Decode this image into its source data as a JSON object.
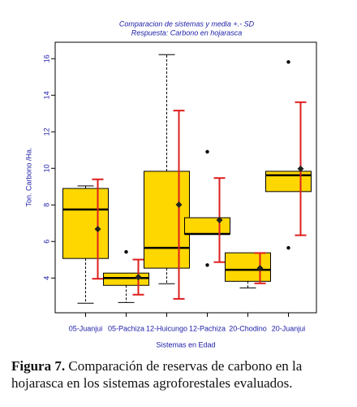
{
  "chart_data": {
    "type": "box",
    "title": "Comparacion de sistemas y media +.- SD",
    "subtitle": "Respuesta: Carbono en hojarasca",
    "y_label": "Ton. Carbono /Ha.",
    "x_label": "Sistemas en Edad",
    "categories": [
      "05-Juanjui",
      "05-Pachiza",
      "12-Huicungo",
      "12-Pachiza",
      "20-Chodino",
      "20-Juanjui"
    ],
    "boxes": [
      {
        "whisker_low": 2.62,
        "q1": 5.07,
        "median": 7.75,
        "q3": 8.9,
        "whisker_high": 9.04,
        "outliers": [],
        "mean": 6.68,
        "sd": 2.72
      },
      {
        "whisker_low": 2.66,
        "q1": 3.6,
        "median": 4.0,
        "q3": 4.27,
        "whisker_high": null,
        "outliers": [
          5.43
        ],
        "mean": 4.05,
        "sd": 0.96
      },
      {
        "whisker_low": 3.69,
        "q1": 4.54,
        "median": 5.65,
        "q3": 9.84,
        "whisker_high": 16.22,
        "outliers": [],
        "mean": 8.01,
        "sd": 5.15
      },
      {
        "whisker_low": null,
        "q1": 6.41,
        "median": 6.41,
        "q3": 7.3,
        "whisker_high": null,
        "outliers": [
          10.91,
          4.71
        ],
        "mean": 7.17,
        "sd": 2.3
      },
      {
        "whisker_low": 3.46,
        "q1": 3.82,
        "median": 4.45,
        "q3": 5.38,
        "whisker_high": null,
        "outliers": [],
        "mean": 4.54,
        "sd": 0.83
      },
      {
        "whisker_low": null,
        "q1": 8.73,
        "median": 9.62,
        "q3": 9.84,
        "whisker_high": null,
        "outliers": [
          15.82,
          5.65
        ],
        "mean": 9.98,
        "sd": 3.64
      }
    ],
    "box_color": "#ffd700",
    "mean_color": "#dd1f1f",
    "text_color": "#1c1ca8",
    "ylim": [
      2.1,
      16.9
    ],
    "yticks": [
      4,
      6,
      8,
      10,
      12,
      14,
      16
    ]
  },
  "caption": {
    "label": "Figura 7.",
    "text": "Comparación de reservas de carbono en la hojarasca en los sistemas agroforestales evaluados."
  }
}
